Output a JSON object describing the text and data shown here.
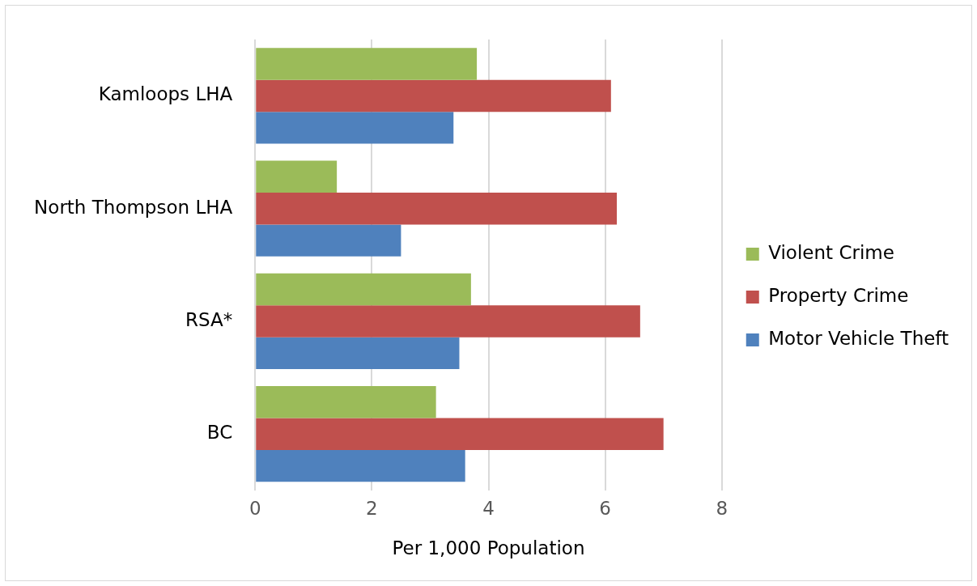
{
  "chart_data": {
    "type": "bar",
    "orientation": "horizontal",
    "xlabel": "Per 1,000 Population",
    "categories": [
      "Kamloops LHA",
      "North Thompson LHA",
      "RSA*",
      "BC"
    ],
    "series": [
      {
        "name": "Violent Crime",
        "color": "#9bbb59",
        "values": [
          3.8,
          1.4,
          3.7,
          3.1
        ]
      },
      {
        "name": "Property Crime",
        "color": "#c0504d",
        "values": [
          6.1,
          6.2,
          6.6,
          7.0
        ]
      },
      {
        "name": "Motor Vehicle Theft",
        "color": "#4f81bd",
        "values": [
          3.4,
          2.5,
          3.5,
          3.6
        ]
      }
    ],
    "xlim": [
      0,
      8
    ],
    "xticks": [
      0,
      2,
      4,
      6,
      8
    ],
    "grid": "x",
    "legend": "right"
  }
}
